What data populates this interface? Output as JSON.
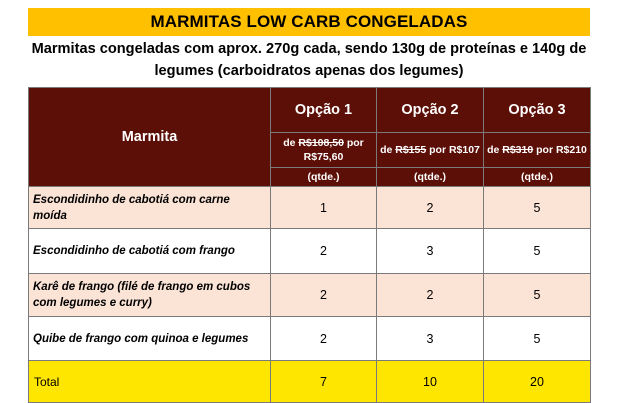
{
  "title": "MARMITAS LOW CARB CONGELADAS",
  "subtitle": "Marmitas congeladas com aprox. 270g cada, sendo 130g de proteínas e 140g de legumes (carboidratos apenas dos legumes)",
  "table": {
    "header_marmita": "Marmita",
    "options": [
      {
        "label": "Opção 1",
        "price_prefix": "de ",
        "price_old": "R$108,50",
        "price_mid": " por R$75,60",
        "qtde": "(qtde.)"
      },
      {
        "label": "Opção 2",
        "price_prefix": "de ",
        "price_old": "R$155",
        "price_mid": " por R$107",
        "qtde": "(qtde.)"
      },
      {
        "label": "Opção 3",
        "price_prefix": "de ",
        "price_old": "R$310",
        "price_mid": " por R$210",
        "qtde": "(qtde.)"
      }
    ],
    "rows": [
      {
        "name": "Escondidinho de cabotiá com carne moída",
        "q1": "1",
        "q2": "2",
        "q3": "5"
      },
      {
        "name": "Escondidinho de cabotiá com frango",
        "q1": "2",
        "q2": "3",
        "q3": "5"
      },
      {
        "name": "Karê de frango (filé de frango em cubos com legumes e curry)",
        "q1": "2",
        "q2": "2",
        "q3": "5"
      },
      {
        "name": "Quibe de frango com quinoa e legumes",
        "q1": "2",
        "q2": "3",
        "q3": "5"
      }
    ],
    "total": {
      "label": "Total",
      "q1": "7",
      "q2": "10",
      "q3": "20"
    }
  },
  "colors": {
    "title_bg": "#ffc000",
    "header_bg": "#5c0f06",
    "row_pink": "#fbe3d6",
    "total_bg": "#ffe600"
  }
}
